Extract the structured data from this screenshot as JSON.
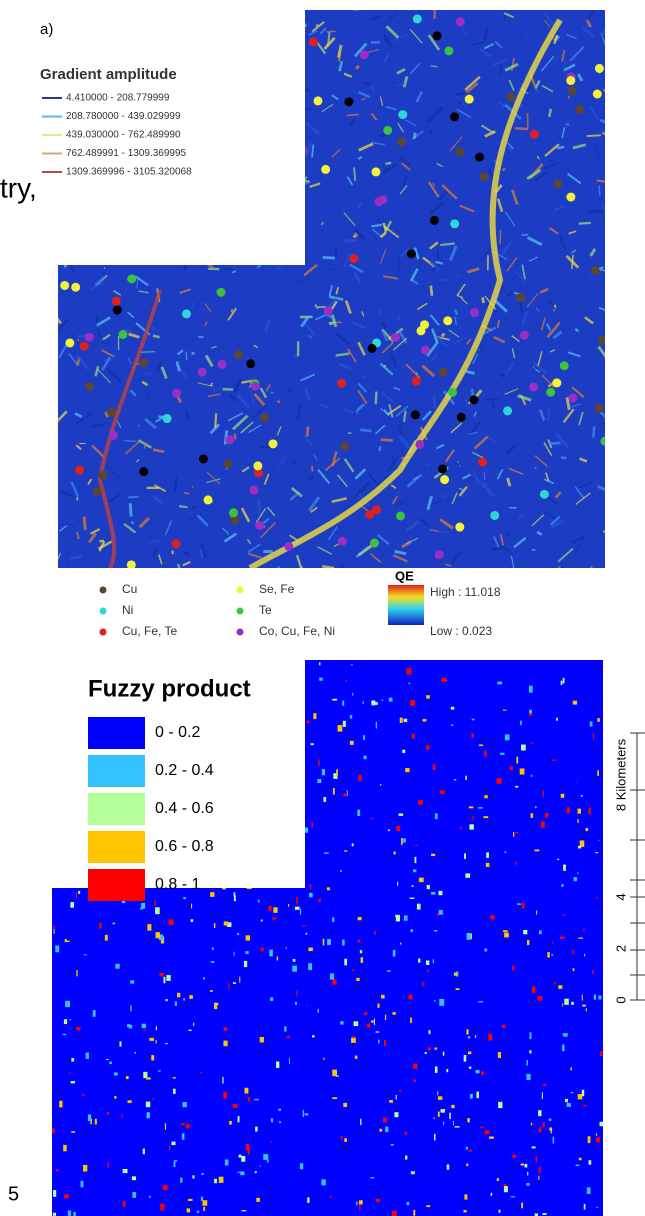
{
  "panel_a": {
    "label": "a)",
    "overflow_text": "try,",
    "gradient_legend": {
      "title": "Gradient amplitude",
      "entries": [
        {
          "label": "4.410000 - 208.779999",
          "color": "#2b3a8c"
        },
        {
          "label": "208.780000 - 439.029999",
          "color": "#62b9e6"
        },
        {
          "label": "439.030000 - 762.489990",
          "color": "#e6e68e"
        },
        {
          "label": "762.489991 - 1309.369995",
          "color": "#dca676"
        },
        {
          "label": "1309.369996 - 3105.320068",
          "color": "#c24848"
        }
      ]
    },
    "points_legend": [
      {
        "label": "Cu",
        "color": "#5a4632"
      },
      {
        "label": "Ni",
        "color": "#2fd6d6"
      },
      {
        "label": "Cu, Fe, Te",
        "color": "#e02020"
      },
      {
        "label": "Se, Fe",
        "color": "#f2f23a"
      },
      {
        "label": "Te",
        "color": "#3cc23c"
      },
      {
        "label": "Co, Cu, Fe, Ni",
        "color": "#9b2fc4"
      }
    ],
    "qe_legend": {
      "title": "QE",
      "high": "High : 11.018",
      "low": "Low : 0.023"
    }
  },
  "panel_b": {
    "title": "Fuzzy product",
    "classes": [
      {
        "label": "0 - 0.2",
        "color": "#0000ff"
      },
      {
        "label": "0.2 - 0.4",
        "color": "#33c4ff"
      },
      {
        "label": "0.4 - 0.6",
        "color": "#b4ff9a"
      },
      {
        "label": "0.6 - 0.8",
        "color": "#ffc300"
      },
      {
        "label": "0.8 - 1",
        "color": "#ff0000"
      }
    ],
    "scale": {
      "title": "8 Kilometers",
      "ticks": [
        0,
        2,
        4
      ]
    }
  },
  "page_number": "5"
}
